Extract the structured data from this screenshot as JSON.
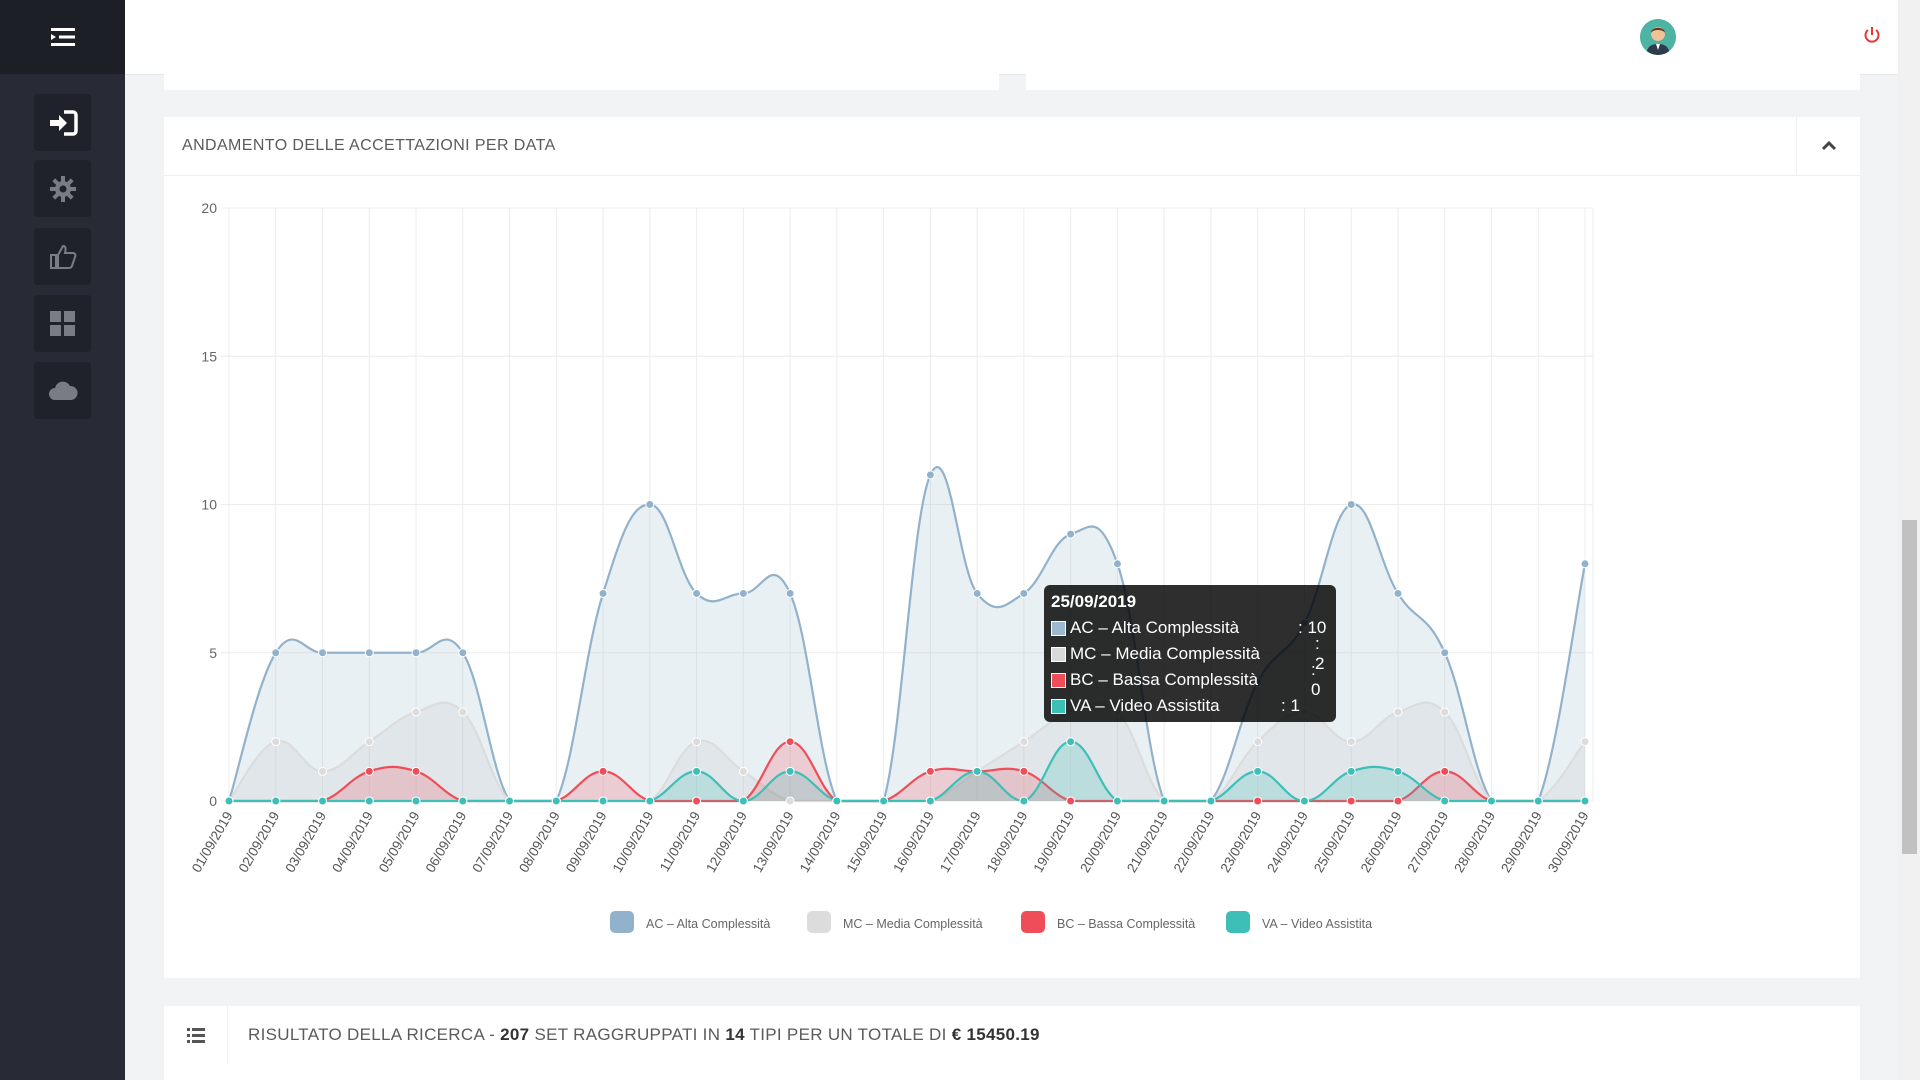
{
  "header": {
    "menu_icon": "menu-toggle-icon",
    "avatar_icon": "user-avatar-icon",
    "power_icon": "power-icon"
  },
  "sidebar": {
    "items": [
      {
        "icon": "sign-in-icon"
      },
      {
        "icon": "gear-icon"
      },
      {
        "icon": "thumbs-up-icon"
      },
      {
        "icon": "grid-icon"
      },
      {
        "icon": "cloud-icon"
      }
    ]
  },
  "panel": {
    "title": "ANDAMENTO DELLE ACCETTAZIONI PER DATA"
  },
  "result": {
    "prefix": "RISULTATO DELLA RICERCA - ",
    "count": "207",
    "mid1": " SET RAGGRUPPATI IN ",
    "types": "14",
    "mid2": " TIPI PER UN TOTALE DI ",
    "total": "€ 15450.19"
  },
  "tooltip": {
    "title": "25/09/2019",
    "rows": [
      {
        "label": "AC – Alta Complessità",
        "value": ": 10",
        "color": "#9cb9cf"
      },
      {
        "label": "MC – Media Complessità",
        "value": ": 2",
        "color": "#d9d9d9"
      },
      {
        "label": "BC – Bassa Complessità",
        "value": ": 0",
        "color": "#ef4e59"
      },
      {
        "label": "VA – Video Assistita",
        "value": ": 1",
        "color": "#3dbfb8"
      }
    ]
  },
  "chart_data": {
    "type": "area",
    "categories": [
      "01/09/2019",
      "02/09/2019",
      "03/09/2019",
      "04/09/2019",
      "05/09/2019",
      "06/09/2019",
      "07/09/2019",
      "08/09/2019",
      "09/09/2019",
      "10/09/2019",
      "11/09/2019",
      "12/09/2019",
      "13/09/2019",
      "14/09/2019",
      "15/09/2019",
      "16/09/2019",
      "17/09/2019",
      "18/09/2019",
      "19/09/2019",
      "20/09/2019",
      "21/09/2019",
      "22/09/2019",
      "23/09/2019",
      "24/09/2019",
      "25/09/2019",
      "26/09/2019",
      "27/09/2019",
      "28/09/2019",
      "29/09/2019",
      "30/09/2019"
    ],
    "ylim": [
      0,
      20
    ],
    "yticks": [
      0,
      5,
      10,
      15,
      20
    ],
    "grid": true,
    "legend_position": "bottom",
    "series": [
      {
        "name": "AC – Alta Complessità",
        "color": "#92b2cb",
        "fill": "rgba(156,185,207,0.22)",
        "values": [
          0,
          5,
          5,
          5,
          5,
          5,
          0,
          0,
          7,
          10,
          7,
          7,
          7,
          0,
          0,
          11,
          7,
          7,
          9,
          8,
          0,
          0,
          4,
          6,
          10,
          7,
          5,
          0,
          0,
          8
        ]
      },
      {
        "name": "MC – Media Complessità",
        "color": "#dcdcdc",
        "fill": "rgba(200,200,200,0.25)",
        "values": [
          0,
          2,
          1,
          2,
          3,
          3,
          0,
          0,
          0,
          0,
          2,
          1,
          0,
          0,
          0,
          0,
          1,
          2,
          3,
          3,
          0,
          0,
          2,
          3,
          2,
          3,
          3,
          0,
          0,
          2
        ]
      },
      {
        "name": "BC – Bassa Complessità",
        "color": "#ef4e59",
        "fill": "rgba(239,78,89,0.22)",
        "values": [
          0,
          0,
          0,
          1,
          1,
          0,
          0,
          0,
          1,
          0,
          0,
          0,
          2,
          0,
          0,
          1,
          1,
          1,
          0,
          0,
          0,
          0,
          0,
          0,
          0,
          0,
          1,
          0,
          0,
          0
        ]
      },
      {
        "name": "VA – Video Assistita",
        "color": "#3dbfb8",
        "fill": "rgba(61,191,184,0.22)",
        "values": [
          0,
          0,
          0,
          0,
          0,
          0,
          0,
          0,
          0,
          0,
          1,
          0,
          1,
          0,
          0,
          0,
          1,
          0,
          2,
          0,
          0,
          0,
          1,
          0,
          1,
          1,
          0,
          0,
          0,
          0
        ]
      }
    ]
  }
}
